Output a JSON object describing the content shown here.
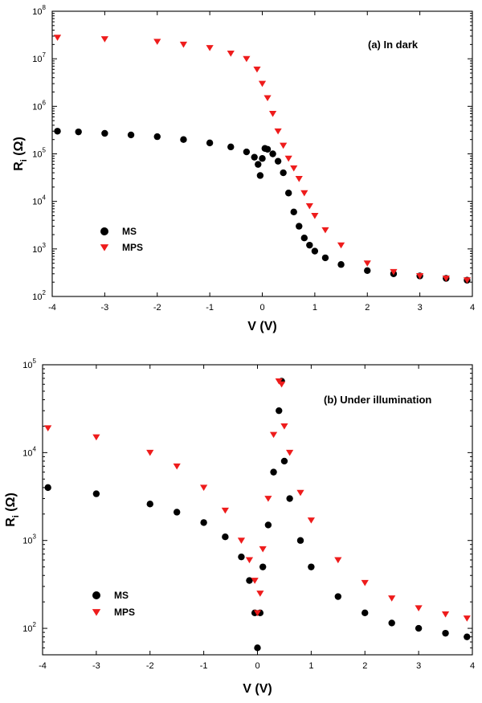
{
  "chart_data": [
    {
      "type": "scatter",
      "annotation": "(a) In dark",
      "xlabel": "V (V)",
      "ylabel_main": "R",
      "ylabel_sub": "i",
      "ylabel_unit": " (Ω)",
      "xlim": [
        -4,
        4
      ],
      "ylim": [
        100,
        100000000
      ],
      "yscale": "log",
      "x_ticks": [
        -4,
        -3,
        -2,
        -1,
        0,
        1,
        2,
        3,
        4
      ],
      "y_ticks": [
        {
          "value": 100,
          "base": "10",
          "exp": "2"
        },
        {
          "value": 1000,
          "base": "10",
          "exp": "3"
        },
        {
          "value": 10000,
          "base": "10",
          "exp": "4"
        },
        {
          "value": 100000,
          "base": "10",
          "exp": "5"
        },
        {
          "value": 1000000,
          "base": "10",
          "exp": "6"
        },
        {
          "value": 10000000,
          "base": "10",
          "exp": "7"
        },
        {
          "value": 100000000,
          "base": "10",
          "exp": "8"
        }
      ],
      "legend_position": "lower-left",
      "grid": false,
      "series": [
        {
          "name": "MS",
          "marker": "circle",
          "color": "#000000",
          "points": [
            [
              -3.9,
              300000
            ],
            [
              -3.5,
              290000
            ],
            [
              -3.0,
              270000
            ],
            [
              -2.5,
              250000
            ],
            [
              -2.0,
              230000
            ],
            [
              -1.5,
              200000
            ],
            [
              -1.0,
              170000
            ],
            [
              -0.6,
              140000
            ],
            [
              -0.3,
              110000
            ],
            [
              -0.15,
              85000
            ],
            [
              -0.08,
              60000
            ],
            [
              -0.04,
              35000
            ],
            [
              0.0,
              80000
            ],
            [
              0.05,
              130000
            ],
            [
              0.1,
              125000
            ],
            [
              0.2,
              100000
            ],
            [
              0.3,
              70000
            ],
            [
              0.4,
              40000
            ],
            [
              0.5,
              15000
            ],
            [
              0.6,
              6000
            ],
            [
              0.7,
              3000
            ],
            [
              0.8,
              1700
            ],
            [
              0.9,
              1200
            ],
            [
              1.0,
              900
            ],
            [
              1.2,
              650
            ],
            [
              1.5,
              470
            ],
            [
              2.0,
              350
            ],
            [
              2.5,
              300
            ],
            [
              3.0,
              270
            ],
            [
              3.5,
              240
            ],
            [
              3.9,
              220
            ]
          ]
        },
        {
          "name": "MPS",
          "marker": "triangle-down",
          "color": "#ee1c1c",
          "points": [
            [
              -3.9,
              28000000
            ],
            [
              -3.0,
              26000000
            ],
            [
              -2.0,
              23000000
            ],
            [
              -1.5,
              20000000
            ],
            [
              -1.0,
              17000000
            ],
            [
              -0.6,
              13000000
            ],
            [
              -0.3,
              10000000
            ],
            [
              -0.1,
              6000000
            ],
            [
              0.0,
              3000000
            ],
            [
              0.1,
              1500000
            ],
            [
              0.2,
              700000
            ],
            [
              0.3,
              300000
            ],
            [
              0.4,
              150000
            ],
            [
              0.5,
              80000
            ],
            [
              0.6,
              50000
            ],
            [
              0.7,
              30000
            ],
            [
              0.8,
              15000
            ],
            [
              0.9,
              8000
            ],
            [
              1.0,
              5000
            ],
            [
              1.2,
              2500
            ],
            [
              1.5,
              1200
            ],
            [
              2.0,
              500
            ],
            [
              2.5,
              330
            ],
            [
              3.0,
              270
            ],
            [
              3.5,
              240
            ],
            [
              3.9,
              220
            ]
          ]
        }
      ]
    },
    {
      "type": "scatter",
      "annotation": "(b) Under illumination",
      "xlabel": "V (V)",
      "ylabel_main": "R",
      "ylabel_sub": "i",
      "ylabel_unit": " (Ω)",
      "xlim": [
        -4,
        4
      ],
      "ylim": [
        50,
        100000
      ],
      "yscale": "log",
      "x_ticks": [
        -4,
        -3,
        -2,
        -1,
        0,
        1,
        2,
        3,
        4
      ],
      "y_ticks": [
        {
          "value": 100,
          "base": "10",
          "exp": "2"
        },
        {
          "value": 1000,
          "base": "10",
          "exp": "3"
        },
        {
          "value": 10000,
          "base": "10",
          "exp": "4"
        },
        {
          "value": 100000,
          "base": "10",
          "exp": "5"
        }
      ],
      "legend_position": "lower-left",
      "grid": false,
      "series": [
        {
          "name": "MS",
          "marker": "circle",
          "color": "#000000",
          "points": [
            [
              -3.9,
              4000
            ],
            [
              -3.0,
              3400
            ],
            [
              -2.0,
              2600
            ],
            [
              -1.5,
              2100
            ],
            [
              -1.0,
              1600
            ],
            [
              -0.6,
              1100
            ],
            [
              -0.3,
              650
            ],
            [
              -0.15,
              350
            ],
            [
              -0.05,
              150
            ],
            [
              0.0,
              60
            ],
            [
              0.05,
              150
            ],
            [
              0.1,
              500
            ],
            [
              0.2,
              1500
            ],
            [
              0.3,
              6000
            ],
            [
              0.4,
              30000
            ],
            [
              0.45,
              65000
            ],
            [
              0.5,
              8000
            ],
            [
              0.6,
              3000
            ],
            [
              0.8,
              1000
            ],
            [
              1.0,
              500
            ],
            [
              1.5,
              230
            ],
            [
              2.0,
              150
            ],
            [
              2.5,
              115
            ],
            [
              3.0,
              100
            ],
            [
              3.5,
              88
            ],
            [
              3.9,
              80
            ]
          ]
        },
        {
          "name": "MPS",
          "marker": "triangle-down",
          "color": "#ee1c1c",
          "points": [
            [
              -3.9,
              19000
            ],
            [
              -3.0,
              15000
            ],
            [
              -2.0,
              10000
            ],
            [
              -1.5,
              7000
            ],
            [
              -1.0,
              4000
            ],
            [
              -0.6,
              2200
            ],
            [
              -0.3,
              1000
            ],
            [
              -0.15,
              600
            ],
            [
              -0.05,
              350
            ],
            [
              0.0,
              150
            ],
            [
              0.05,
              250
            ],
            [
              0.1,
              800
            ],
            [
              0.2,
              3000
            ],
            [
              0.3,
              16000
            ],
            [
              0.4,
              65000
            ],
            [
              0.45,
              60000
            ],
            [
              0.5,
              20000
            ],
            [
              0.6,
              10000
            ],
            [
              0.8,
              3500
            ],
            [
              1.0,
              1700
            ],
            [
              1.5,
              600
            ],
            [
              2.0,
              330
            ],
            [
              2.5,
              220
            ],
            [
              3.0,
              170
            ],
            [
              3.5,
              145
            ],
            [
              3.9,
              130
            ]
          ]
        }
      ]
    }
  ]
}
